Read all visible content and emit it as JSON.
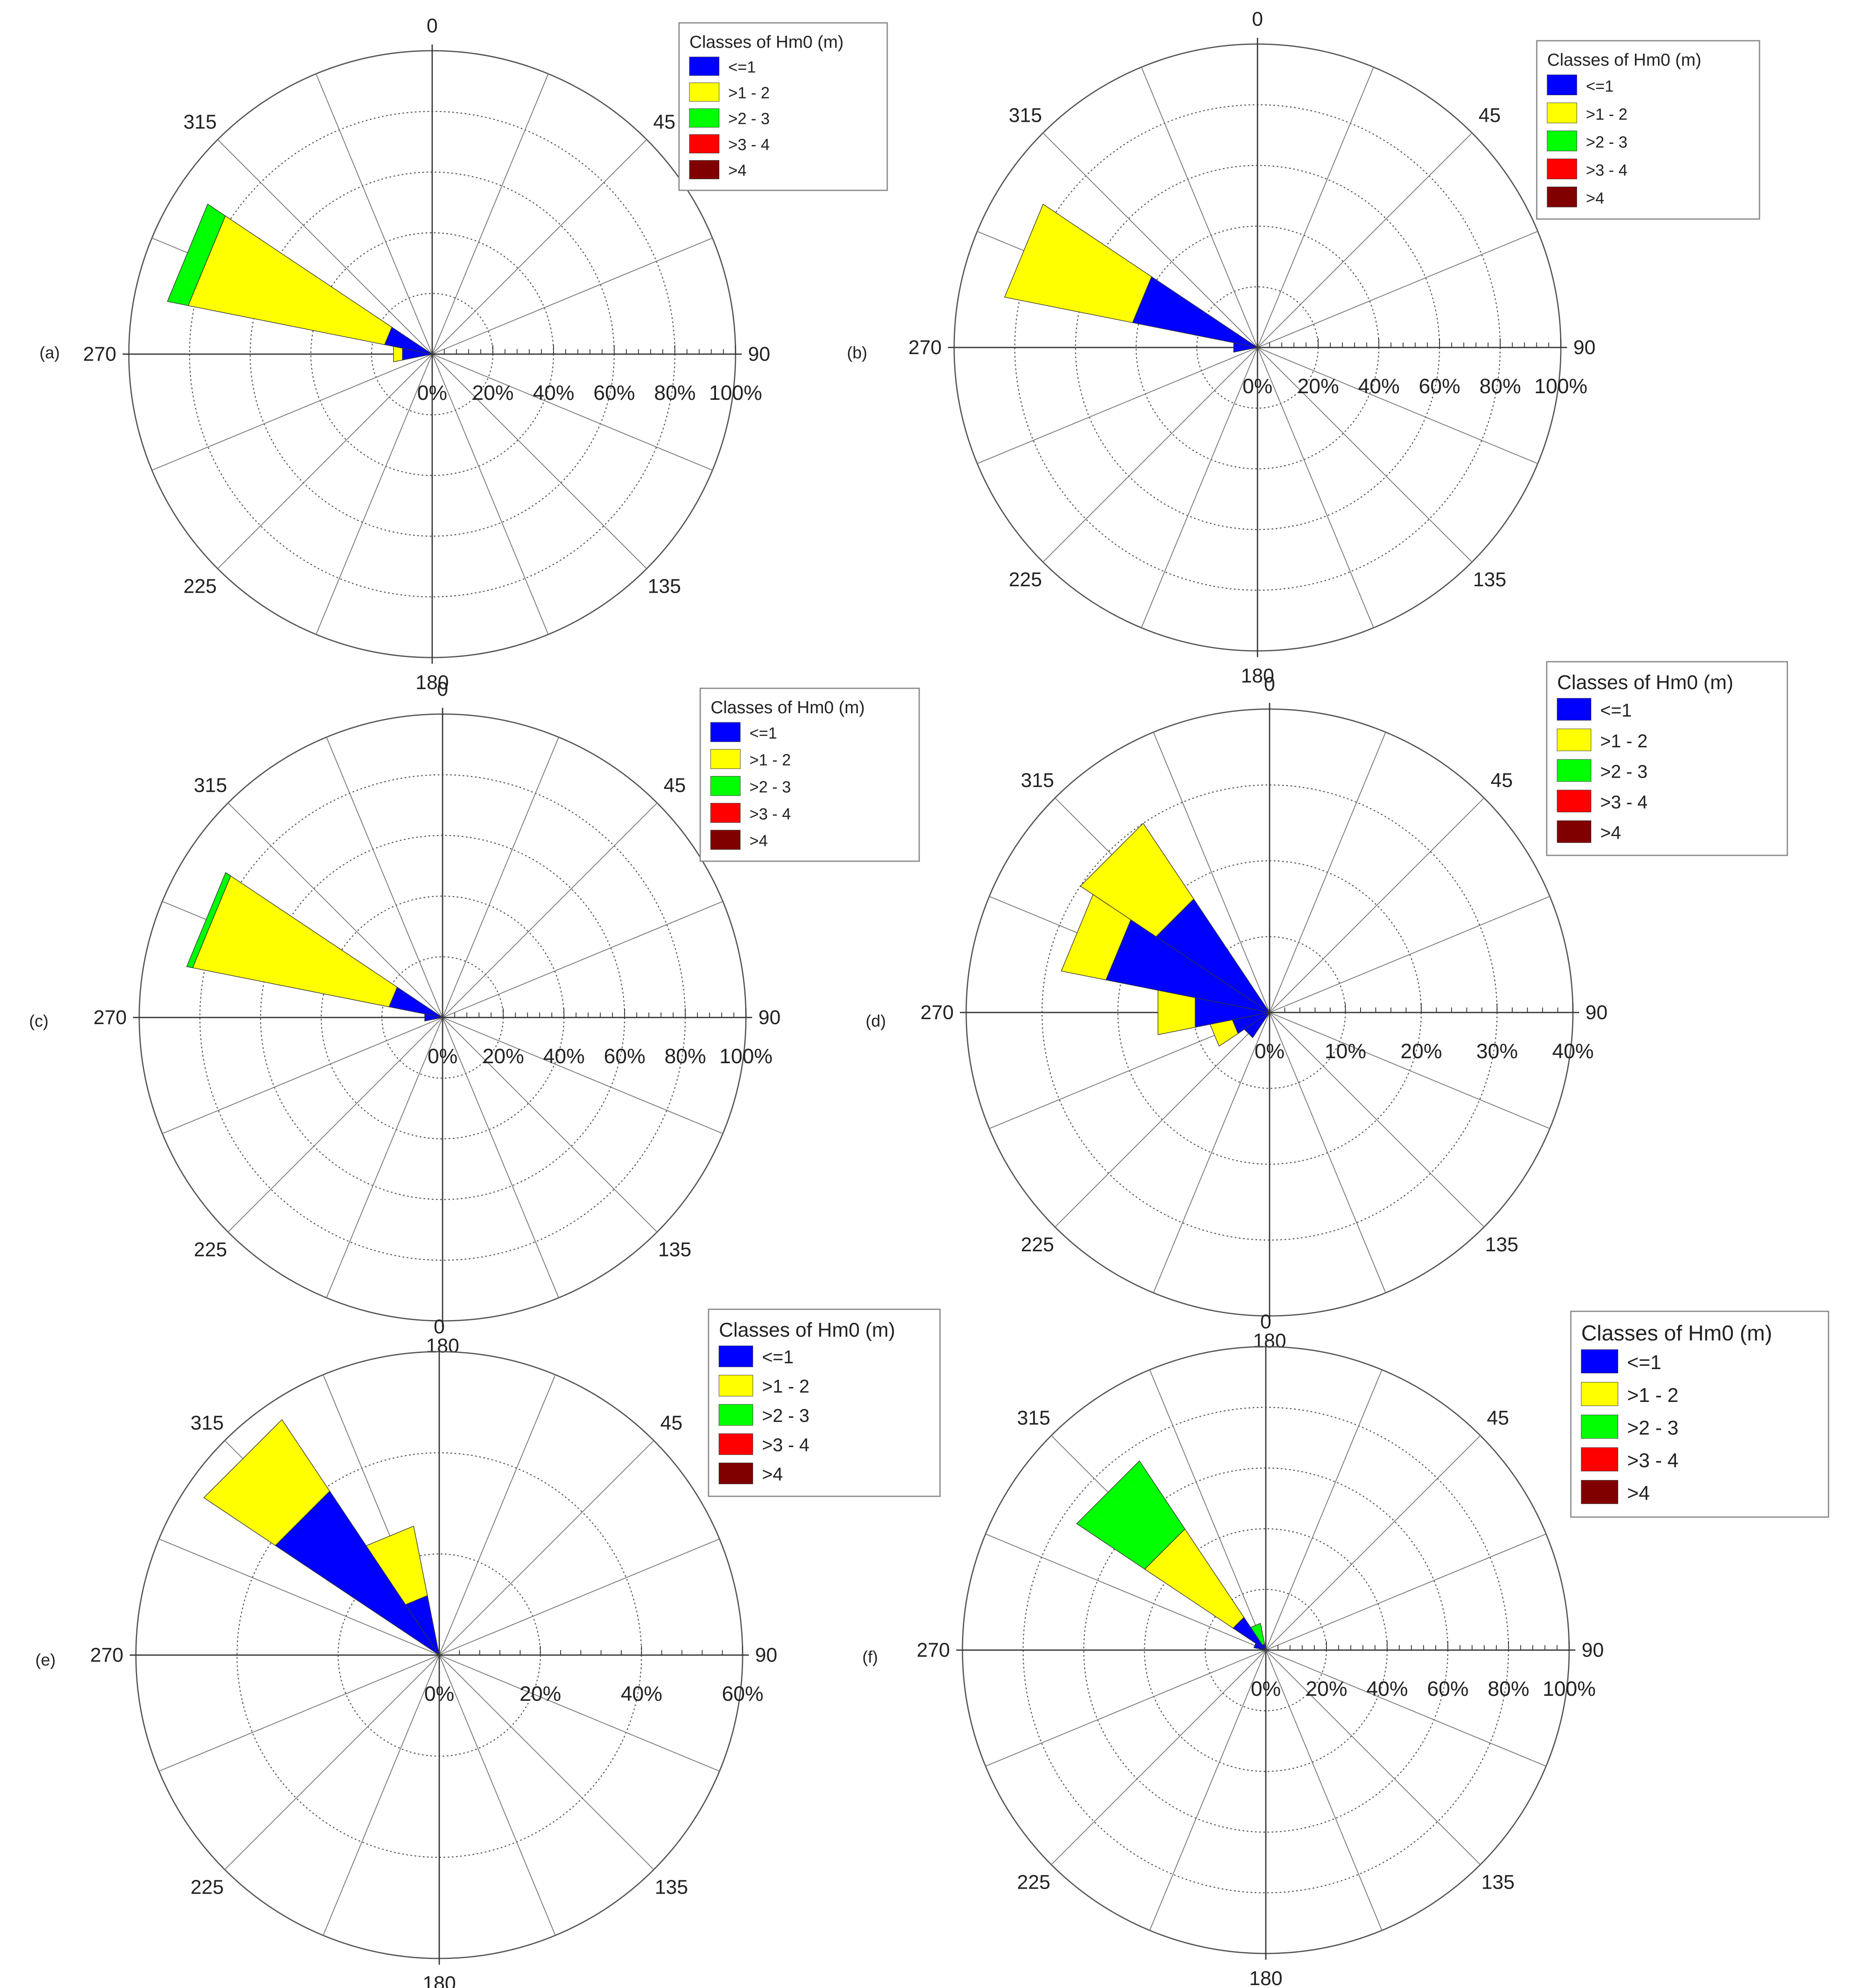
{
  "legend": {
    "title": "Classes of Hm0 (m)",
    "classes": [
      {
        "label": "<=1",
        "color": "#0000ff"
      },
      {
        "label": ">1 - 2",
        "color": "#ffff00"
      },
      {
        "label": ">2 - 3",
        "color": "#00ff00"
      },
      {
        "label": ">3 - 4",
        "color": "#ff0000"
      },
      {
        "label": ">4",
        "color": "#800000"
      }
    ]
  },
  "direction_labels": [
    "0",
    "45",
    "90",
    "135",
    "180",
    "225",
    "270",
    "315"
  ],
  "chart_data": [
    {
      "type": "rose",
      "panel": "(a)",
      "title": "",
      "rlim": [
        0,
        100
      ],
      "radial_ticks": [
        "0%",
        "20%",
        "40%",
        "60%",
        "80%",
        "100%"
      ],
      "sector_width_deg": 22.5,
      "series": [
        {
          "direction": 292.5,
          "cum": [
            16,
            82,
            89,
            89,
            89
          ]
        },
        {
          "direction": 270,
          "cum": [
            10,
            13,
            13,
            13,
            13
          ]
        }
      ]
    },
    {
      "type": "rose",
      "panel": "(b)",
      "title": "",
      "rlim": [
        0,
        100
      ],
      "radial_ticks": [
        "0%",
        "20%",
        "40%",
        "60%",
        "80%",
        "100%"
      ],
      "sector_width_deg": 22.5,
      "series": [
        {
          "direction": 292.5,
          "cum": [
            42,
            85,
            85,
            85,
            85
          ]
        },
        {
          "direction": 270,
          "cum": [
            8,
            8,
            8,
            8,
            8
          ]
        }
      ]
    },
    {
      "type": "rose",
      "panel": "(c)",
      "title": "",
      "rlim": [
        0,
        100
      ],
      "radial_ticks": [
        "0%",
        "20%",
        "40%",
        "60%",
        "80%",
        "100%"
      ],
      "sector_width_deg": 22.5,
      "series": [
        {
          "direction": 292.5,
          "cum": [
            18,
            84,
            86,
            86,
            86
          ]
        },
        {
          "direction": 270,
          "cum": [
            6,
            6,
            6,
            6,
            6
          ]
        }
      ]
    },
    {
      "type": "rose",
      "panel": "(d)",
      "title": "",
      "rlim": [
        0,
        40
      ],
      "radial_ticks": [
        "0%",
        "10%",
        "20%",
        "30%",
        "40%"
      ],
      "sector_width_deg": 22.5,
      "series": [
        {
          "direction": 315,
          "cum": [
            18,
            30,
            30,
            30,
            30
          ]
        },
        {
          "direction": 292.5,
          "cum": [
            22,
            28,
            28,
            28,
            28
          ]
        },
        {
          "direction": 270,
          "cum": [
            10,
            15,
            15,
            15,
            15
          ]
        },
        {
          "direction": 247.5,
          "cum": [
            5,
            8,
            8,
            8,
            8
          ]
        },
        {
          "direction": 225,
          "cum": [
            4,
            4,
            4,
            4,
            4
          ]
        }
      ]
    },
    {
      "type": "rose",
      "panel": "(e)",
      "title": "",
      "rlim": [
        0,
        60
      ],
      "radial_ticks": [
        "0%",
        "20%",
        "40%",
        "60%"
      ],
      "sector_width_deg": 22.5,
      "series": [
        {
          "direction": 315,
          "cum": [
            39,
            56,
            56,
            56,
            56
          ]
        },
        {
          "direction": 337.5,
          "cum": [
            12,
            26,
            26,
            26,
            26
          ]
        }
      ]
    },
    {
      "type": "rose",
      "panel": "(f)",
      "title": "",
      "rlim": [
        0,
        100
      ],
      "radial_ticks": [
        "0%",
        "20%",
        "40%",
        "60%",
        "80%",
        "100%"
      ],
      "sector_width_deg": 22.5,
      "series": [
        {
          "direction": 315,
          "cum": [
            13,
            48,
            75,
            75,
            75
          ]
        },
        {
          "direction": 337.5,
          "cum": [
            2,
            2,
            9,
            9,
            9
          ]
        },
        {
          "direction": 292.5,
          "cum": [
            4,
            4,
            4,
            4,
            4
          ]
        }
      ]
    }
  ]
}
